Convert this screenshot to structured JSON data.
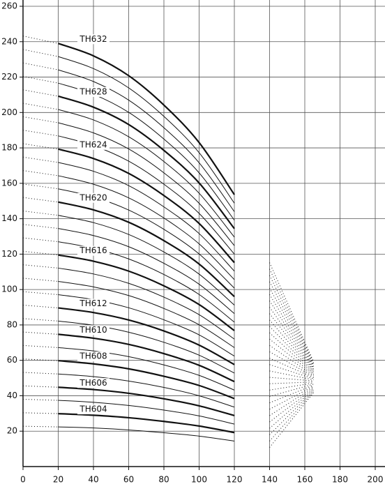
{
  "chart_data": {
    "type": "line",
    "xlim": [
      0,
      200
    ],
    "ylim": [
      0,
      260
    ],
    "xticks": [
      0,
      20,
      40,
      60,
      80,
      100,
      120,
      140,
      160,
      180,
      200
    ],
    "yticks": [
      20,
      40,
      60,
      80,
      100,
      120,
      140,
      160,
      180,
      200,
      220,
      240,
      260
    ],
    "grid": true,
    "color": "#111111",
    "dotted_ends": true,
    "x": [
      0,
      20,
      40,
      60,
      80,
      100,
      120,
      140,
      165
    ],
    "series": [
      {
        "values": [
          22.8,
          22.4,
          21.8,
          20.7,
          19.1,
          17.2,
          14.4,
          10.8,
          41.8
        ]
      },
      {
        "name": "TH604",
        "bold": true,
        "values": [
          30.4,
          29.9,
          29,
          27.6,
          25.5,
          22.9,
          19.2,
          14.4,
          42.4
        ]
      },
      {
        "values": [
          38,
          37.4,
          36.3,
          34.5,
          31.9,
          28.6,
          24,
          18,
          43
        ]
      },
      {
        "name": "TH606",
        "bold": true,
        "values": [
          45.6,
          44.8,
          43.5,
          41.4,
          38.3,
          34.3,
          28.8,
          21.6,
          43.6
        ]
      },
      {
        "values": [
          53.2,
          52.3,
          50.8,
          48.3,
          44.7,
          40,
          33.6,
          25.2,
          44.2
        ]
      },
      {
        "name": "TH608",
        "bold": true,
        "values": [
          60.8,
          59.8,
          58,
          55.2,
          51,
          45.8,
          38.4,
          28.8,
          44.8
        ]
      },
      {
        "values": [
          68.4,
          67.2,
          65.3,
          62.1,
          57.4,
          51.5,
          43.2,
          32.4,
          45.4
        ]
      },
      {
        "name": "TH610",
        "bold": true,
        "values": [
          76,
          74.7,
          72.5,
          69,
          63.8,
          57.2,
          48,
          36,
          46
        ]
      },
      {
        "values": [
          83.6,
          82.2,
          79.8,
          75.9,
          70.2,
          62.9,
          52.8,
          39.6,
          46.6
        ]
      },
      {
        "name": "TH612",
        "bold": true,
        "values": [
          91.2,
          89.6,
          87,
          82.8,
          76.6,
          68.6,
          57.6,
          43.2,
          47.2
        ]
      },
      {
        "values": [
          98.8,
          97.1,
          94.3,
          89.7,
          82.9,
          74.4,
          62.4,
          46.8,
          47.8
        ]
      },
      {
        "values": [
          106.4,
          104.6,
          101.5,
          96.6,
          89.3,
          80.1,
          67.2,
          50.4,
          48.4
        ]
      },
      {
        "values": [
          114,
          112.1,
          108.8,
          103.5,
          95.7,
          85.8,
          72,
          54,
          49
        ]
      },
      {
        "name": "TH616",
        "bold": true,
        "values": [
          121.6,
          119.5,
          116,
          110.4,
          102.1,
          91.5,
          76.8,
          57.6,
          49.6
        ]
      },
      {
        "values": [
          129.2,
          127,
          123.3,
          117.3,
          108.5,
          97.2,
          81.6,
          61.2,
          50.2
        ]
      },
      {
        "values": [
          136.8,
          134.5,
          130.5,
          124.2,
          114.8,
          103,
          86.4,
          64.8,
          50.8
        ]
      },
      {
        "values": [
          144.4,
          141.9,
          137.8,
          131.1,
          121.2,
          108.7,
          91.2,
          68.4,
          51.4
        ]
      },
      {
        "name": "TH620",
        "bold": true,
        "values": [
          152,
          149.4,
          145,
          138,
          127.6,
          114.4,
          96,
          72,
          52
        ]
      },
      {
        "values": [
          159.6,
          156.9,
          152.3,
          144.9,
          134,
          120.1,
          100.8,
          75.6,
          52.6
        ]
      },
      {
        "values": [
          167.2,
          164.3,
          159.5,
          151.8,
          140.4,
          125.8,
          105.6,
          79.2,
          53.2
        ]
      },
      {
        "values": [
          174.8,
          171.8,
          166.8,
          158.7,
          146.7,
          131.6,
          110.4,
          82.8,
          53.8
        ]
      },
      {
        "name": "TH624",
        "bold": true,
        "values": [
          182.4,
          179.3,
          174,
          165.6,
          153.1,
          137.3,
          115.2,
          86.4,
          54.4
        ]
      },
      {
        "values": [
          190,
          186.8,
          181.3,
          172.5,
          159.5,
          143,
          120,
          90,
          55
        ]
      },
      {
        "values": [
          197.6,
          194.2,
          188.5,
          179.4,
          165.9,
          148.7,
          124.8,
          93.6,
          55.6
        ]
      },
      {
        "values": [
          205.2,
          201.7,
          195.8,
          186.3,
          172.3,
          154.4,
          129.6,
          97.2,
          56.2
        ]
      },
      {
        "name": "TH628",
        "bold": true,
        "values": [
          212.8,
          209.2,
          203,
          193.2,
          178.6,
          160.2,
          134.4,
          100.8,
          56.8
        ]
      },
      {
        "values": [
          220.4,
          216.6,
          210.3,
          200.1,
          185,
          165.9,
          139.2,
          104.4,
          57.4
        ]
      },
      {
        "values": [
          228,
          224.1,
          217.5,
          207,
          191.4,
          171.6,
          144,
          108,
          58
        ]
      },
      {
        "values": [
          235.6,
          231.6,
          224.8,
          213.9,
          197.8,
          177.3,
          148.8,
          111.6,
          58.6
        ]
      },
      {
        "name": "TH632",
        "bold": true,
        "values": [
          243.2,
          239,
          232,
          220.8,
          204.2,
          183,
          153.6,
          115.2,
          59.2
        ]
      }
    ]
  }
}
